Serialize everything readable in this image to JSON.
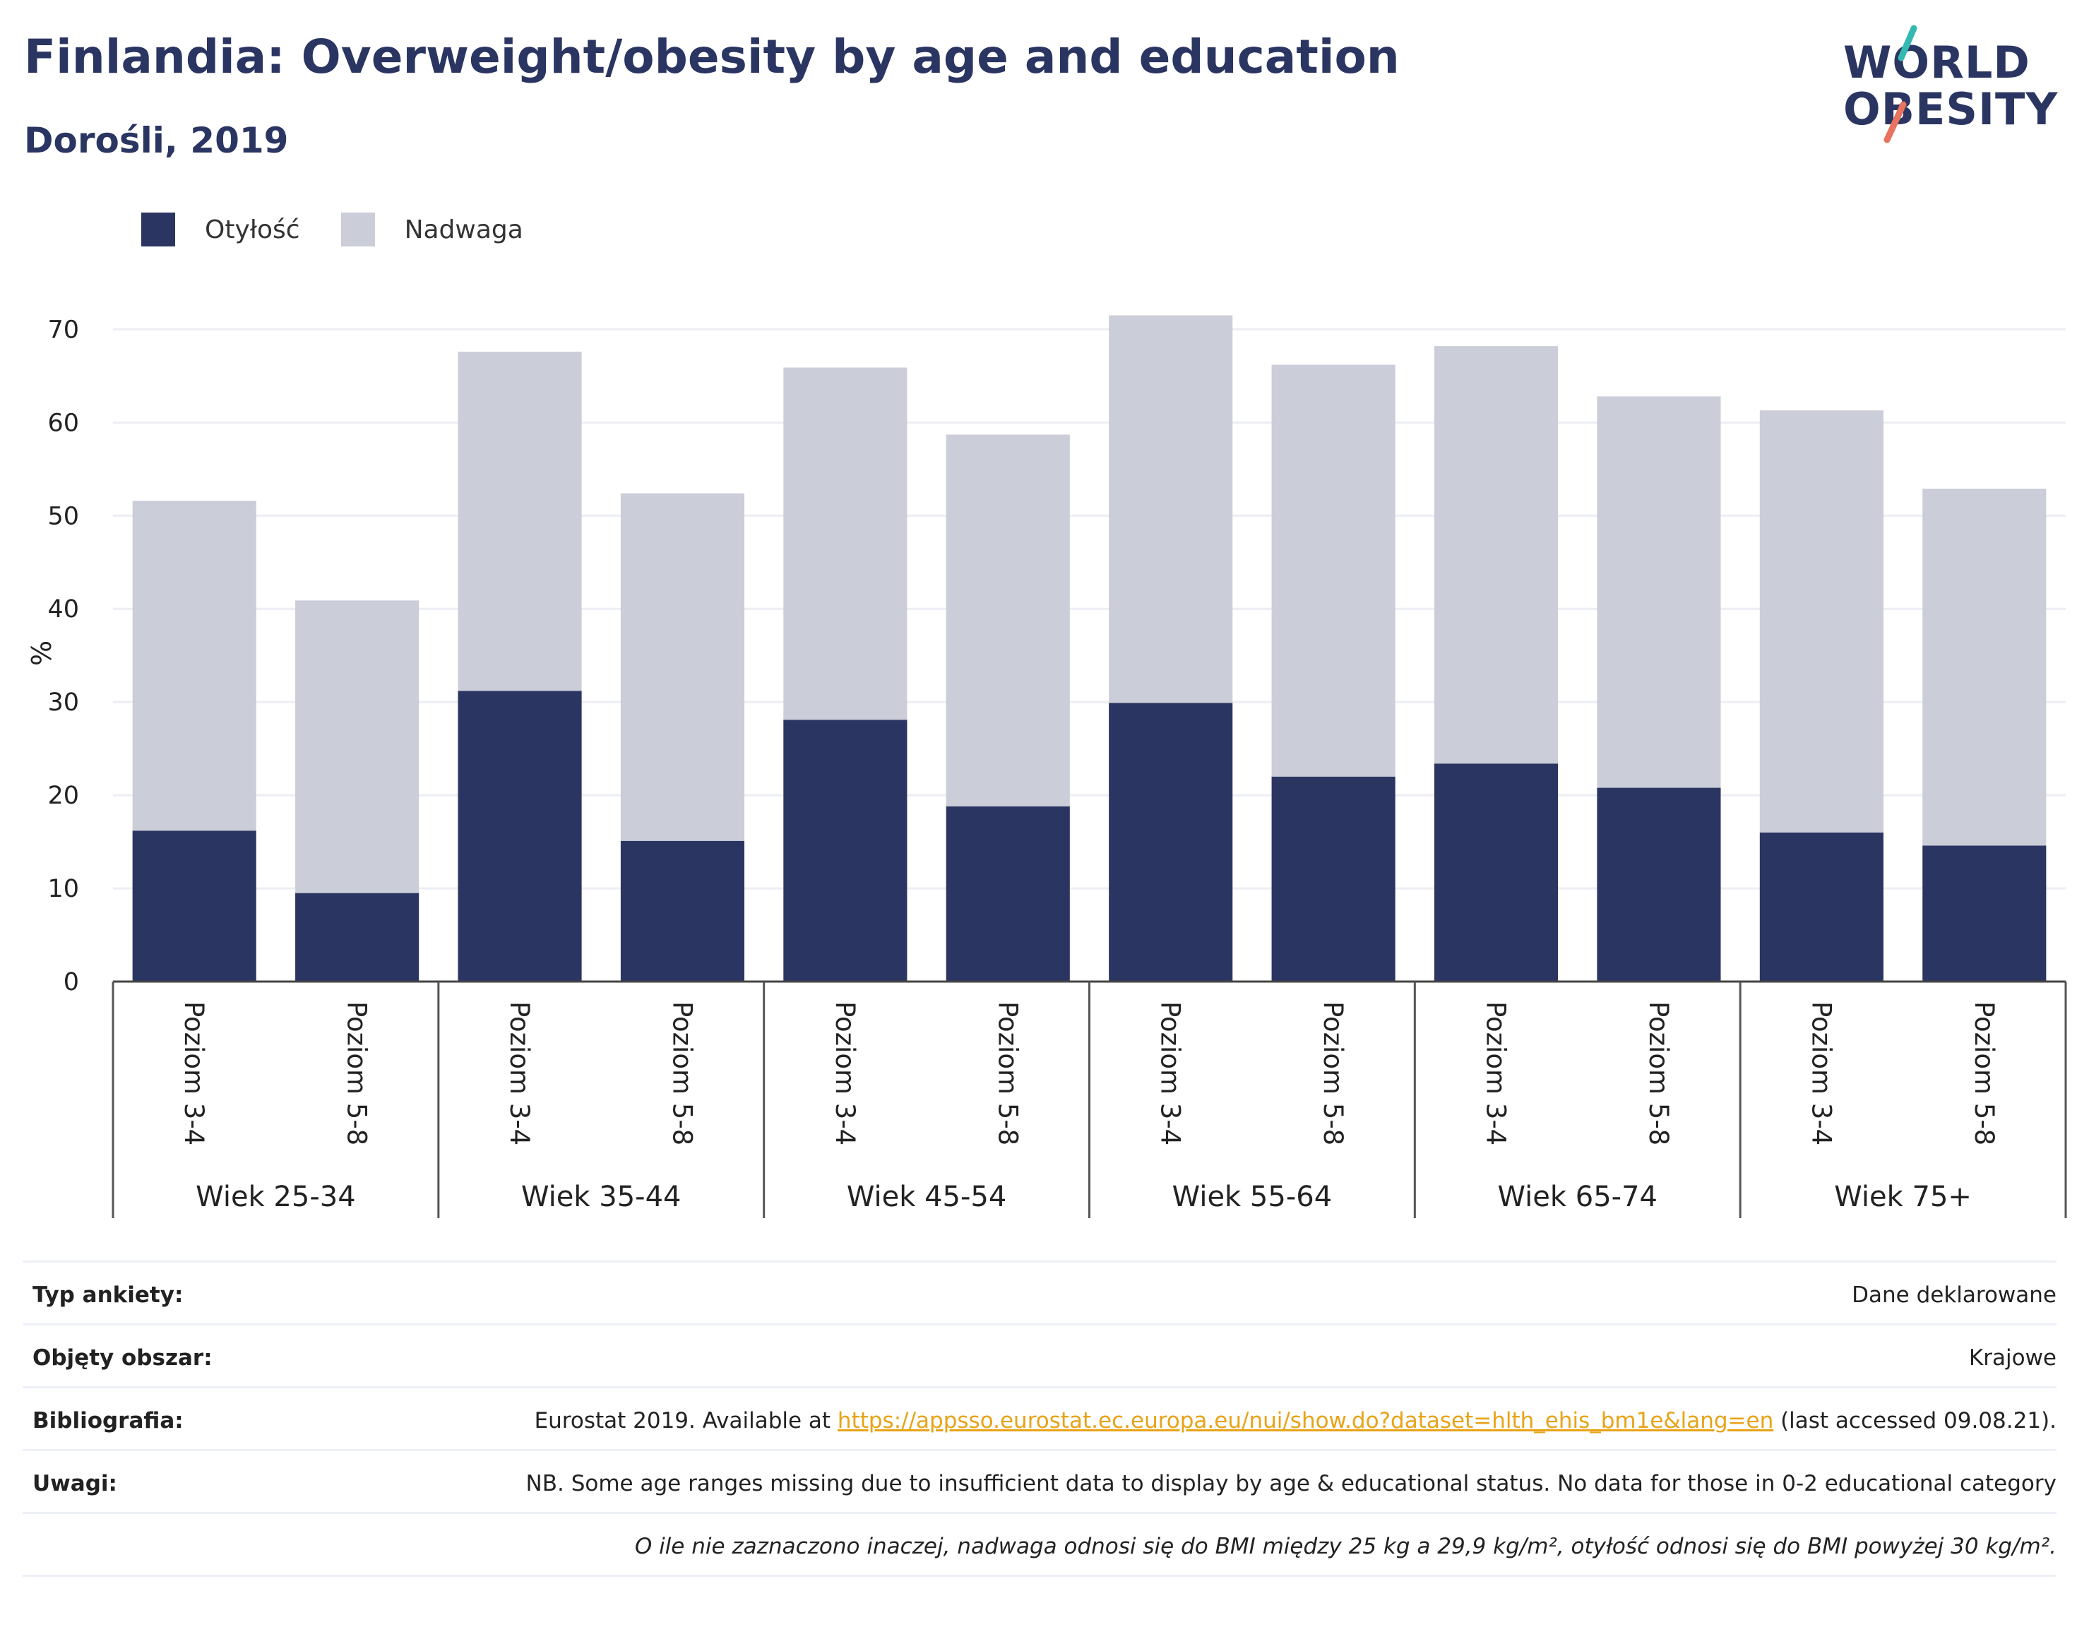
{
  "header": {
    "title": "Finlandia: Overweight/obesity by age and education",
    "subtitle": "Dorośli, 2019"
  },
  "logo": {
    "line1": "WORLD",
    "line2": "OBESITY"
  },
  "legend": [
    {
      "label": "Otyłość",
      "color": "#2b3562"
    },
    {
      "label": "Nadwaga",
      "color": "#cbcdd8"
    }
  ],
  "chart_data": {
    "type": "bar",
    "stacked": true,
    "ylabel": "%",
    "ylim": [
      0,
      72
    ],
    "yticks": [
      0,
      10,
      20,
      30,
      40,
      50,
      60,
      70
    ],
    "grid": true,
    "categories": [
      "Poziom 3-4",
      "Poziom 5-8",
      "Poziom 3-4",
      "Poziom 5-8",
      "Poziom 3-4",
      "Poziom 5-8",
      "Poziom 3-4",
      "Poziom 5-8",
      "Poziom 3-4",
      "Poziom 5-8",
      "Poziom 3-4",
      "Poziom 5-8"
    ],
    "groups": [
      "Wiek 25-34",
      "Wiek 35-44",
      "Wiek 45-54",
      "Wiek 55-64",
      "Wiek 65-74",
      "Wiek 75+"
    ],
    "series": [
      {
        "name": "Otyłość",
        "color": "#2b3562",
        "values": [
          16.2,
          9.5,
          31.2,
          15.1,
          28.1,
          18.8,
          29.9,
          22.0,
          23.4,
          20.8,
          16.0,
          14.6
        ]
      },
      {
        "name": "Nadwaga",
        "color": "#cbcdd8",
        "values": [
          35.4,
          31.4,
          36.4,
          37.3,
          37.8,
          39.9,
          41.6,
          44.2,
          44.8,
          42.0,
          45.3,
          38.3
        ]
      }
    ]
  },
  "info": {
    "survey_type_label": "Typ ankiety:",
    "survey_type_value": "Dane deklarowane",
    "coverage_label": "Objęty obszar:",
    "coverage_value": "Krajowe",
    "bibliography_label": "Bibliografia:",
    "bibliography_prefix": "Eurostat 2019. Available at ",
    "bibliography_link": "https://appsso.eurostat.ec.europa.eu/nui/show.do?dataset=hlth_ehis_bm1e&lang=en",
    "bibliography_suffix": " (last accessed 09.08.21).",
    "notes_label": "Uwagi:",
    "notes_value": "NB. Some age ranges missing due to insufficient data to display by age & educational status. No data for those in 0-2 educational category",
    "definition_note": "O ile nie zaznaczono inaczej, nadwaga odnosi się do BMI między 25 kg a 29,9 kg/m², otyłość odnosi się do BMI powyżej 30 kg/m²."
  }
}
